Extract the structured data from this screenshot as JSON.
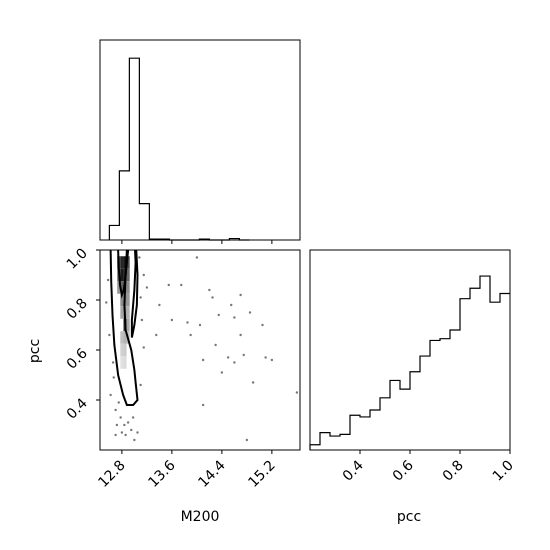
{
  "chart_data": {
    "type": "corner",
    "variables": [
      "M200",
      "pcc"
    ],
    "xlabel_bottom_left": "M200",
    "ylabel_bottom_left": "pcc",
    "xlabel_bottom_right": "pcc",
    "m200_ticks": [
      "12.8",
      "13.6",
      "14.4",
      "15.2"
    ],
    "m200_tick_values": [
      12.8,
      13.6,
      14.4,
      15.2
    ],
    "m200_range": [
      12.45,
      15.65
    ],
    "pcc_ticks": [
      "0.4",
      "0.6",
      "0.8",
      "1.0"
    ],
    "pcc_tick_values": [
      0.4,
      0.6,
      0.8,
      1.0
    ],
    "pcc_range": [
      0.2,
      1.0
    ],
    "m200_hist": {
      "edges": [
        12.6,
        12.76,
        12.92,
        13.08,
        13.24,
        13.4,
        13.56,
        13.72,
        13.88,
        14.04,
        14.2,
        14.36,
        14.52,
        14.68,
        14.84
      ],
      "counts": [
        0.08,
        0.38,
        1.0,
        0.2,
        0.005,
        0.005,
        0.0,
        0.0,
        0.0,
        0.005,
        0.0,
        0.0,
        0.008,
        0.0
      ],
      "ylim": [
        0,
        1.1
      ]
    },
    "pcc_hist": {
      "edges": [
        0.2,
        0.24,
        0.28,
        0.32,
        0.36,
        0.4,
        0.44,
        0.48,
        0.52,
        0.56,
        0.6,
        0.64,
        0.68,
        0.72,
        0.76,
        0.8,
        0.84,
        0.88,
        0.92,
        0.96,
        1.0
      ],
      "counts": [
        0.03,
        0.1,
        0.08,
        0.09,
        0.2,
        0.19,
        0.23,
        0.3,
        0.4,
        0.35,
        0.45,
        0.54,
        0.63,
        0.64,
        0.69,
        0.87,
        0.93,
        1.0,
        0.85,
        0.9
      ],
      "ylim": [
        0,
        1.15
      ]
    },
    "contour_outer": [
      [
        12.9,
        1.0
      ],
      [
        12.86,
        0.9
      ],
      [
        12.84,
        0.78
      ],
      [
        12.86,
        0.68
      ],
      [
        12.95,
        0.6
      ],
      [
        13.0,
        0.52
      ],
      [
        13.02,
        0.47
      ],
      [
        13.05,
        0.4
      ],
      [
        12.98,
        0.38
      ],
      [
        12.88,
        0.38
      ],
      [
        12.82,
        0.42
      ],
      [
        12.74,
        0.5
      ],
      [
        12.68,
        0.62
      ],
      [
        12.65,
        0.74
      ],
      [
        12.63,
        0.87
      ],
      [
        12.62,
        1.0
      ]
    ],
    "contour_inner": [
      [
        12.88,
        1.0
      ],
      [
        12.86,
        0.9
      ],
      [
        12.83,
        0.84
      ],
      [
        12.8,
        0.82
      ],
      [
        12.77,
        0.86
      ],
      [
        12.75,
        0.93
      ],
      [
        12.74,
        1.0
      ]
    ],
    "contour_right": [
      [
        13.03,
        1.0
      ],
      [
        13.05,
        0.9
      ],
      [
        13.04,
        0.78
      ],
      [
        13.0,
        0.7
      ],
      [
        12.96,
        0.65
      ],
      [
        12.96,
        0.72
      ],
      [
        13.0,
        0.84
      ],
      [
        13.02,
        0.95
      ],
      [
        13.01,
        1.0
      ]
    ],
    "density_cells": [
      {
        "m": 12.75,
        "p": 0.95,
        "d": 0.7
      },
      {
        "m": 12.8,
        "p": 0.95,
        "d": 0.85
      },
      {
        "m": 12.85,
        "p": 0.95,
        "d": 0.9
      },
      {
        "m": 12.9,
        "p": 0.95,
        "d": 0.7
      },
      {
        "m": 12.75,
        "p": 0.9,
        "d": 0.55
      },
      {
        "m": 12.8,
        "p": 0.9,
        "d": 0.9
      },
      {
        "m": 12.85,
        "p": 0.9,
        "d": 0.85
      },
      {
        "m": 12.9,
        "p": 0.9,
        "d": 0.6
      },
      {
        "m": 12.75,
        "p": 0.85,
        "d": 0.4
      },
      {
        "m": 12.8,
        "p": 0.85,
        "d": 0.6
      },
      {
        "m": 12.85,
        "p": 0.85,
        "d": 0.55
      },
      {
        "m": 12.9,
        "p": 0.85,
        "d": 0.45
      },
      {
        "m": 12.8,
        "p": 0.8,
        "d": 0.45
      },
      {
        "m": 12.85,
        "p": 0.8,
        "d": 0.5
      },
      {
        "m": 12.9,
        "p": 0.8,
        "d": 0.4
      },
      {
        "m": 12.8,
        "p": 0.75,
        "d": 0.35
      },
      {
        "m": 12.85,
        "p": 0.75,
        "d": 0.4
      },
      {
        "m": 12.9,
        "p": 0.75,
        "d": 0.3
      },
      {
        "m": 12.85,
        "p": 0.7,
        "d": 0.75
      },
      {
        "m": 12.9,
        "p": 0.7,
        "d": 0.35
      },
      {
        "m": 12.8,
        "p": 0.65,
        "d": 0.25
      },
      {
        "m": 12.85,
        "p": 0.65,
        "d": 0.3
      },
      {
        "m": 12.9,
        "p": 0.65,
        "d": 0.25
      },
      {
        "m": 12.8,
        "p": 0.6,
        "d": 0.18
      },
      {
        "m": 12.85,
        "p": 0.6,
        "d": 0.2
      },
      {
        "m": 12.8,
        "p": 0.55,
        "d": 0.12
      },
      {
        "m": 12.85,
        "p": 0.55,
        "d": 0.14
      }
    ],
    "scatter_points": [
      [
        13.55,
        0.86
      ],
      [
        13.75,
        0.86
      ],
      [
        14.0,
        0.97
      ],
      [
        14.2,
        0.84
      ],
      [
        14.25,
        0.81
      ],
      [
        14.35,
        0.74
      ],
      [
        14.55,
        0.78
      ],
      [
        14.6,
        0.73
      ],
      [
        14.7,
        0.82
      ],
      [
        14.85,
        0.75
      ],
      [
        13.6,
        0.72
      ],
      [
        13.85,
        0.71
      ],
      [
        14.05,
        0.7
      ],
      [
        13.9,
        0.66
      ],
      [
        14.3,
        0.62
      ],
      [
        14.5,
        0.57
      ],
      [
        14.6,
        0.55
      ],
      [
        14.75,
        0.58
      ],
      [
        15.2,
        0.56
      ],
      [
        14.4,
        0.51
      ],
      [
        14.7,
        0.66
      ],
      [
        15.05,
        0.7
      ],
      [
        15.1,
        0.57
      ],
      [
        14.1,
        0.38
      ],
      [
        14.8,
        0.24
      ],
      [
        14.1,
        0.56
      ],
      [
        14.9,
        0.47
      ],
      [
        15.6,
        0.43
      ],
      [
        13.2,
        0.85
      ],
      [
        13.4,
        0.78
      ],
      [
        13.35,
        0.66
      ],
      [
        13.15,
        0.61
      ],
      [
        12.62,
        0.42
      ],
      [
        12.7,
        0.36
      ],
      [
        12.72,
        0.3
      ],
      [
        12.8,
        0.27
      ],
      [
        12.86,
        0.26
      ],
      [
        12.95,
        0.28
      ],
      [
        12.98,
        0.33
      ],
      [
        13.05,
        0.27
      ],
      [
        12.67,
        0.49
      ],
      [
        12.66,
        0.55
      ],
      [
        13.1,
        0.46
      ],
      [
        12.75,
        0.39
      ],
      [
        12.9,
        0.31
      ],
      [
        12.78,
        0.33
      ],
      [
        12.84,
        0.3
      ],
      [
        13.0,
        0.24
      ],
      [
        12.58,
        0.88
      ],
      [
        12.55,
        0.79
      ],
      [
        12.6,
        0.66
      ],
      [
        13.08,
        0.97
      ],
      [
        13.15,
        0.9
      ],
      [
        13.1,
        0.81
      ],
      [
        13.12,
        0.72
      ],
      [
        12.7,
        0.26
      ]
    ]
  }
}
